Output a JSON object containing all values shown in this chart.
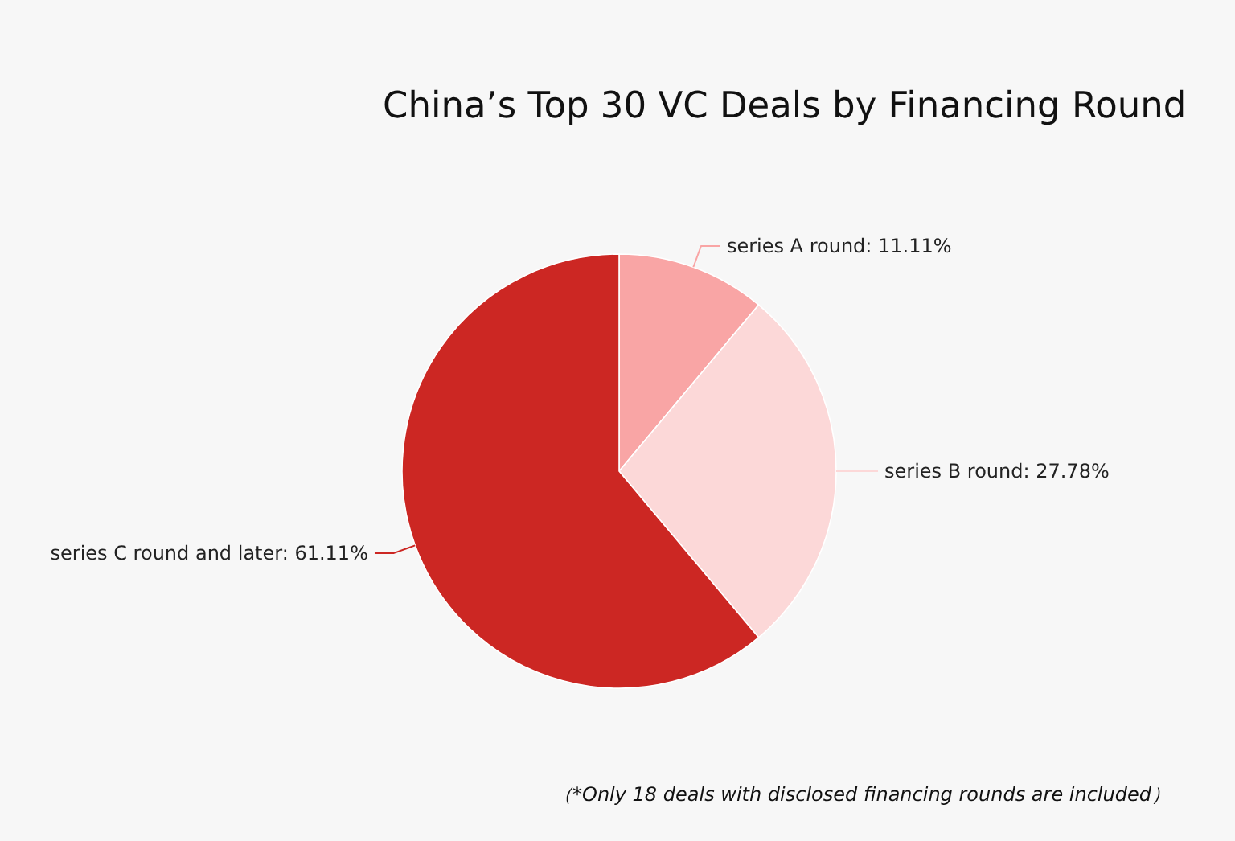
{
  "chart_data": {
    "type": "pie",
    "title": "China’s Top 30 VC Deals by Financing Round",
    "categories": [
      "series A round",
      "series B round",
      "series C round and later"
    ],
    "values": [
      11.11,
      27.78,
      61.11
    ],
    "value_labels": [
      "11.11%",
      "27.78%",
      "61.11%"
    ],
    "colors": [
      "#f9a5a5",
      "#fcd8d8",
      "#cc2723"
    ],
    "annotations": [
      "（*Only 18 deals with disclosed financing rounds are included）"
    ]
  }
}
